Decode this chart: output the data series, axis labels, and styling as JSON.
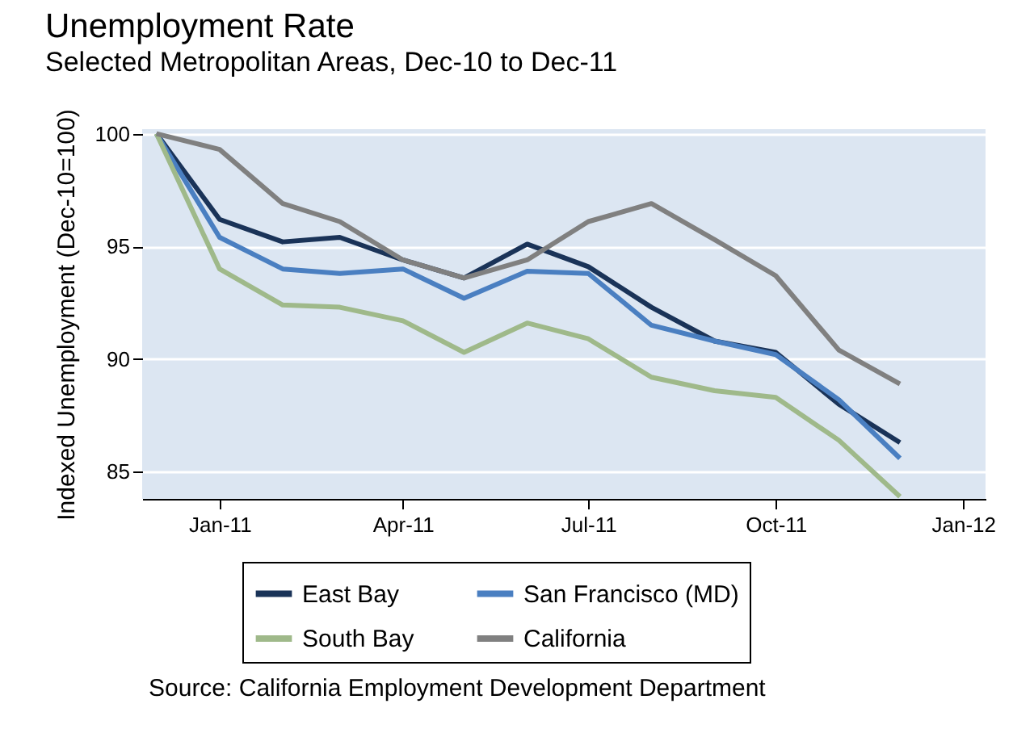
{
  "chart_data": {
    "type": "line",
    "title": "Unemployment Rate",
    "subtitle": "Selected Metropolitan Areas, Dec-10 to Dec-11",
    "ylabel": "Indexed Unemployment (Dec-10=100)",
    "x": [
      "2010-12",
      "2011-01",
      "2011-02",
      "2011-03",
      "2011-04",
      "2011-05",
      "2011-06",
      "2011-07",
      "2011-08",
      "2011-09",
      "2011-10",
      "2011-11",
      "2011-12"
    ],
    "series": [
      {
        "name": "East Bay",
        "color": "#1a3358",
        "values": [
          100,
          96.2,
          95.2,
          95.4,
          94.4,
          93.6,
          95.1,
          94.1,
          92.3,
          90.8,
          90.3,
          88.0,
          86.3
        ]
      },
      {
        "name": "San Francisco (MD)",
        "color": "#4a7fc1",
        "values": [
          100,
          95.4,
          94.0,
          93.8,
          94.0,
          92.7,
          93.9,
          93.8,
          91.5,
          90.8,
          90.2,
          88.2,
          85.6
        ]
      },
      {
        "name": "South Bay",
        "color": "#9fb98a",
        "values": [
          100,
          94.0,
          92.4,
          92.3,
          91.7,
          90.3,
          91.6,
          90.9,
          89.2,
          88.6,
          88.3,
          86.4,
          83.9
        ]
      },
      {
        "name": "California",
        "color": "#808080",
        "values": [
          100,
          99.3,
          96.9,
          96.1,
          94.4,
          93.6,
          94.4,
          96.1,
          96.9,
          95.3,
          93.7,
          90.4,
          88.9
        ]
      }
    ],
    "xlim": [
      "2010-11-24",
      "2012-01-12"
    ],
    "xticks": [
      {
        "value": "2011-01",
        "label": "Jan-11"
      },
      {
        "value": "2011-04",
        "label": "Apr-11"
      },
      {
        "value": "2011-07",
        "label": "Jul-11"
      },
      {
        "value": "2011-10",
        "label": "Oct-11"
      },
      {
        "value": "2012-01",
        "label": "Jan-12"
      }
    ],
    "ylim": [
      83.8,
      100.2
    ],
    "yticks": [
      85,
      90,
      95,
      100
    ],
    "grid": "y",
    "legend": "bottom",
    "marker": "none",
    "line_style": "solid",
    "annotations": [
      "Source: California Employment Development Department"
    ]
  }
}
